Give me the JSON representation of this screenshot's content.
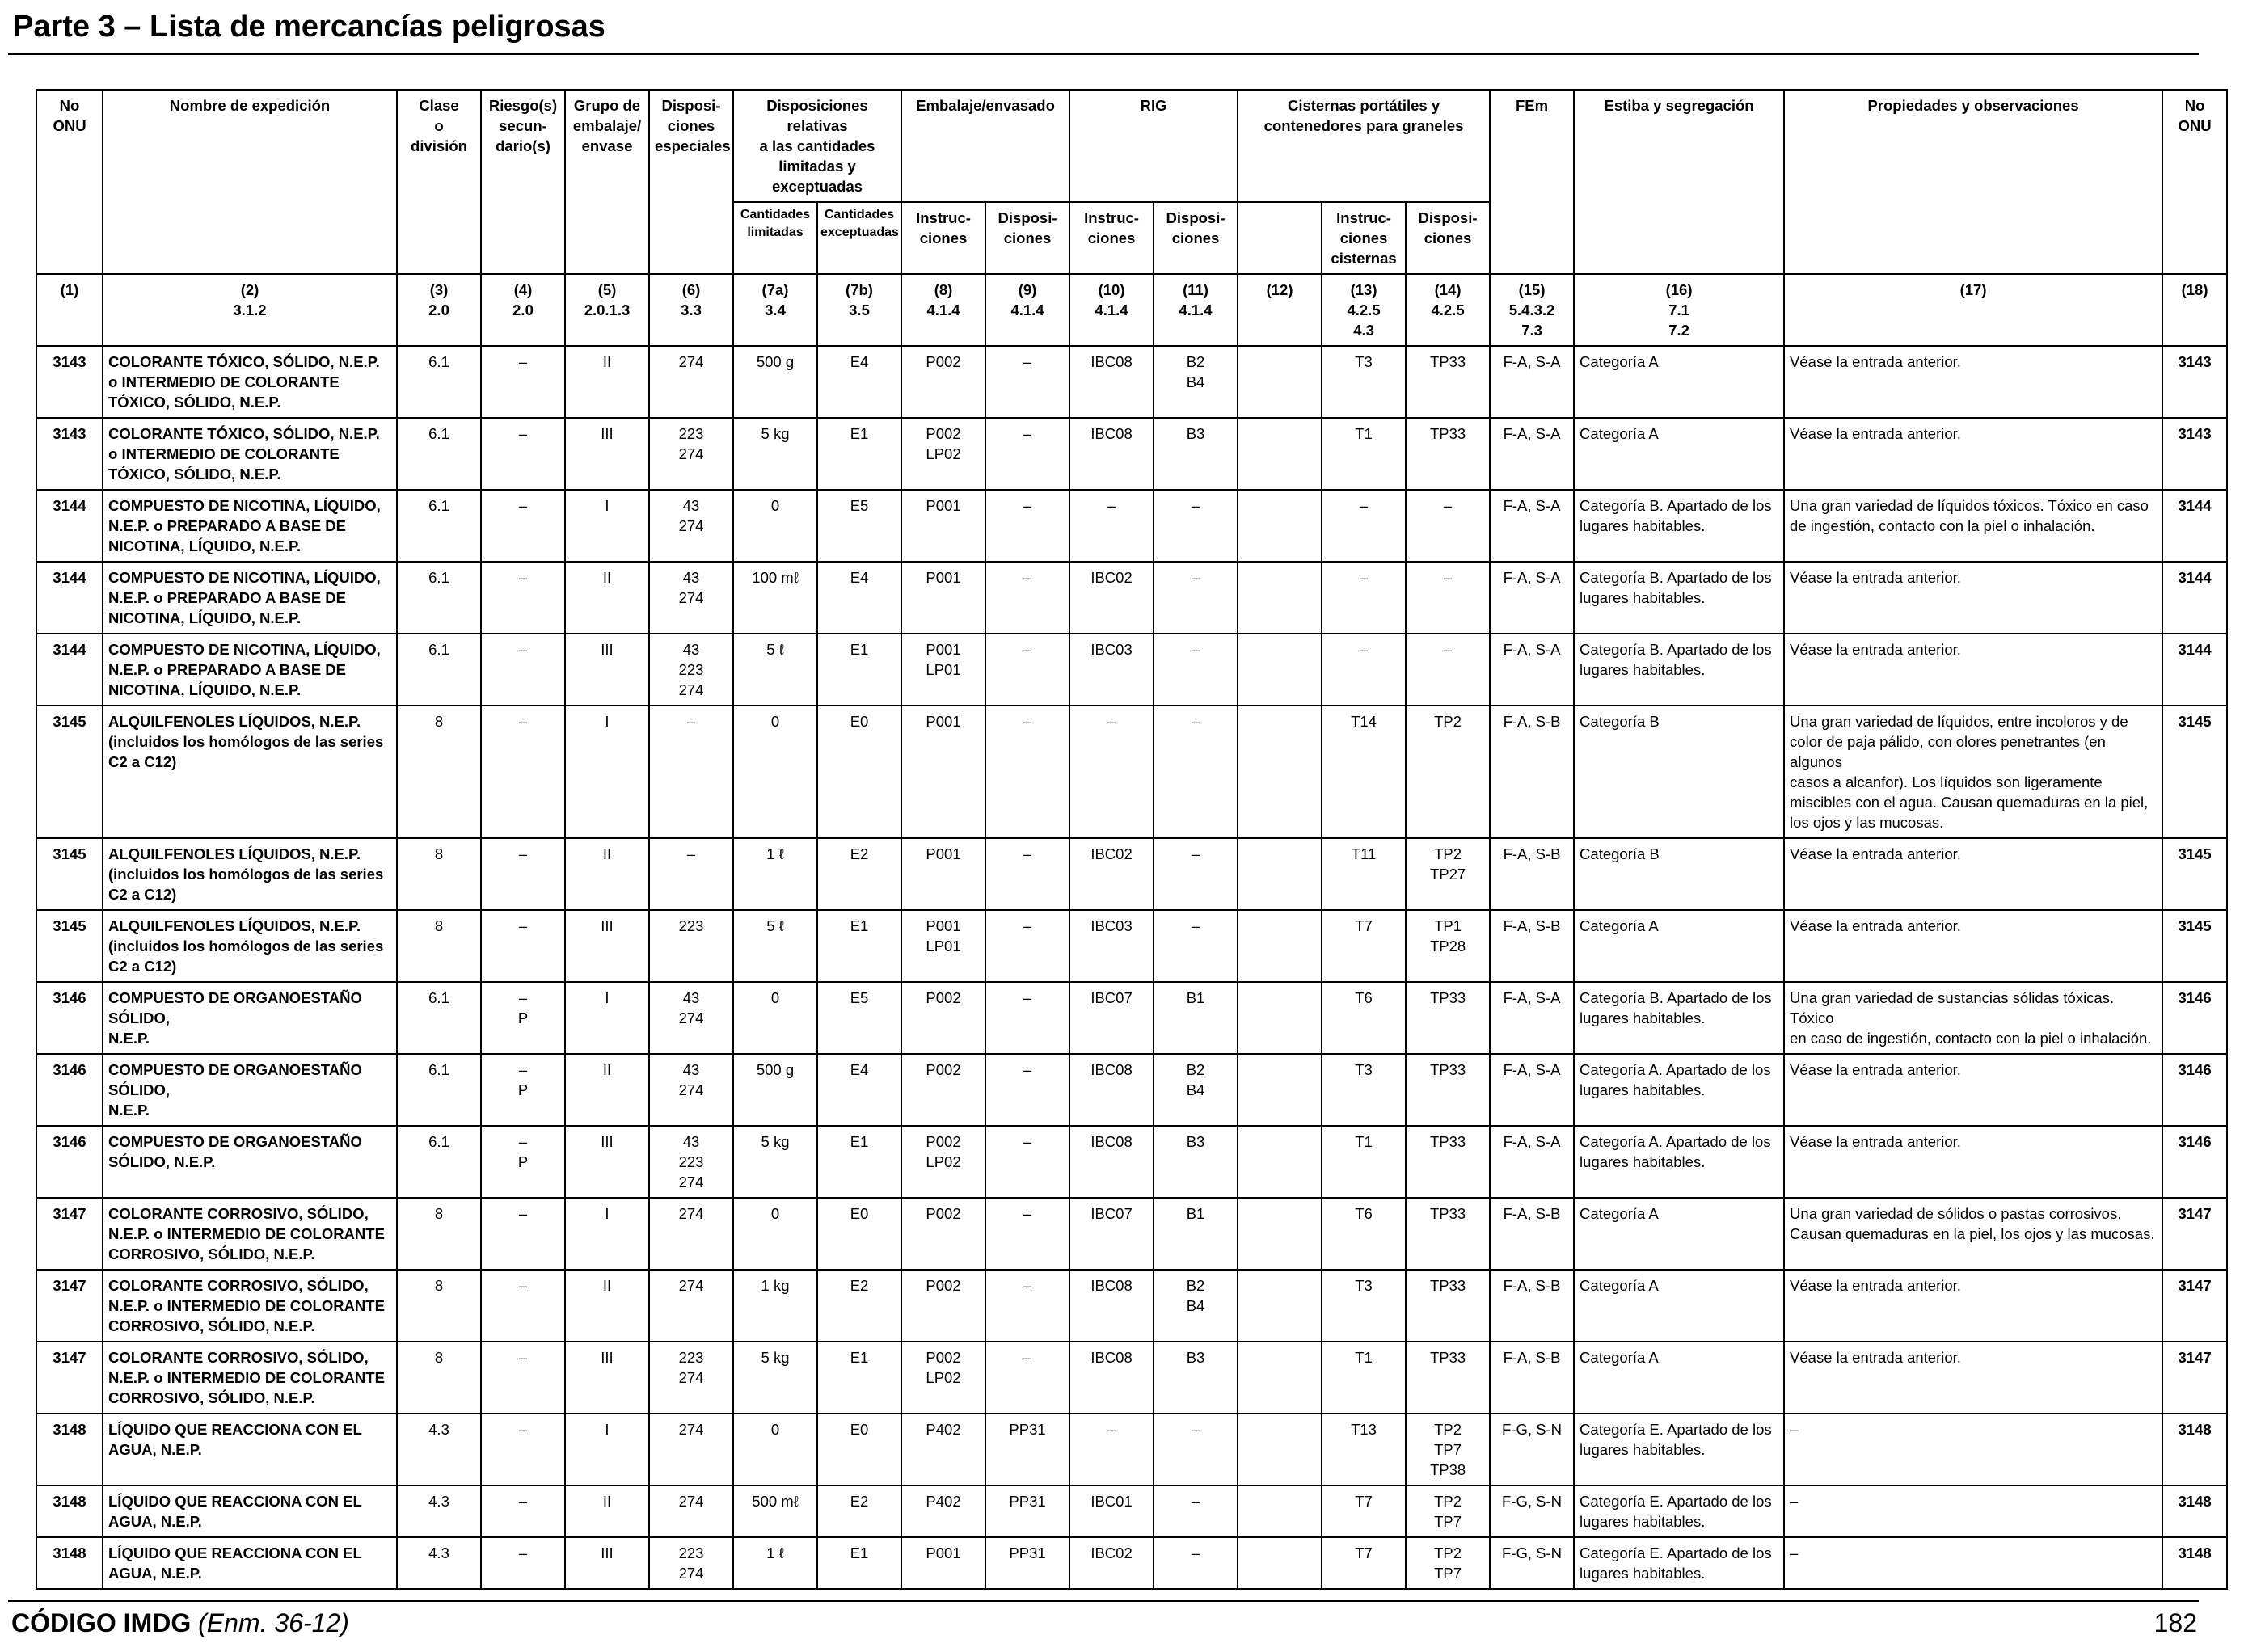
{
  "title": "Parte 3 – Lista de mercancías peligrosas",
  "headers": {
    "onu": "No\nONU",
    "nombre": "Nombre de expedición",
    "clase": "Clase\no\ndivisión",
    "riesgo": "Riesgo(s)\nsecun-\ndario(s)",
    "grupo": "Grupo de\nembalaje/\nenvase",
    "dispesp": "Disposi-\nciones\nespeciales",
    "dispcant": "Disposiciones relativas\na las cantidades\nlimitadas y exceptuadas",
    "embalaje": "Embalaje/envasado",
    "rig": "RIG",
    "cisternas": "Cisternas portátiles y\ncontenedores para graneles",
    "fem": "FEm",
    "estiba": "Estiba y segregación",
    "propiedades": "Propiedades y observaciones",
    "onu2": "No\nONU",
    "cantlim": "Cantidades\nlimitadas",
    "cantexc": "Cantidades\nexceptuadas",
    "emb_instr": "Instruc-\nciones",
    "emb_disp": "Disposi-\nciones",
    "rig_instr": "Instruc-\nciones",
    "rig_disp": "Disposi-\nciones",
    "cis_instr": "Instruc-\nciones\ncisternas",
    "cis_disp": "Disposi-\nciones"
  },
  "column_numbers": [
    "(1)",
    "(2)\n3.1.2",
    "(3)\n2.0",
    "(4)\n2.0",
    "(5)\n2.0.1.3",
    "(6)\n3.3",
    "(7a)\n3.4",
    "(7b)\n3.5",
    "(8)\n4.1.4",
    "(9)\n4.1.4",
    "(10)\n4.1.4",
    "(11)\n4.1.4",
    "(12)",
    "(13)\n4.2.5\n4.3",
    "(14)\n4.2.5",
    "(15)\n5.4.3.2\n7.3",
    "(16)\n7.1\n7.2",
    "(17)",
    "(18)"
  ],
  "rows": [
    [
      "3143",
      "COLORANTE TÓXICO, SÓLIDO, N.E.P.\no INTERMEDIO DE COLORANTE\nTÓXICO, SÓLIDO, N.E.P.",
      "6.1",
      "–",
      "II",
      "274",
      "500 g",
      "E4",
      "P002",
      "–",
      "IBC08",
      "B2\nB4",
      "",
      "T3",
      "TP33",
      "F-A, S-A",
      "Categoría A",
      "Véase la entrada anterior.",
      "3143"
    ],
    [
      "3143",
      "COLORANTE TÓXICO, SÓLIDO, N.E.P.\no INTERMEDIO DE COLORANTE\nTÓXICO, SÓLIDO, N.E.P.",
      "6.1",
      "–",
      "III",
      "223\n274",
      "5 kg",
      "E1",
      "P002\nLP02",
      "–",
      "IBC08",
      "B3",
      "",
      "T1",
      "TP33",
      "F-A, S-A",
      "Categoría A",
      "Véase la entrada anterior.",
      "3143"
    ],
    [
      "3144",
      "COMPUESTO DE NICOTINA, LÍQUIDO,\nN.E.P. o PREPARADO A BASE DE\nNICOTINA, LÍQUIDO, N.E.P.",
      "6.1",
      "–",
      "I",
      "43\n274",
      "0",
      "E5",
      "P001",
      "–",
      "–",
      "–",
      "",
      "–",
      "–",
      "F-A, S-A",
      "Categoría B. Apartado de los\nlugares habitables.",
      "Una gran variedad de líquidos tóxicos. Tóxico en caso\nde ingestión, contacto con la piel o inhalación.",
      "3144"
    ],
    [
      "3144",
      "COMPUESTO DE NICOTINA, LÍQUIDO,\nN.E.P. o PREPARADO A BASE DE\nNICOTINA, LÍQUIDO, N.E.P.",
      "6.1",
      "–",
      "II",
      "43\n274",
      "100 mℓ",
      "E4",
      "P001",
      "–",
      "IBC02",
      "–",
      "",
      "–",
      "–",
      "F-A, S-A",
      "Categoría B. Apartado de los\nlugares habitables.",
      "Véase la entrada anterior.",
      "3144"
    ],
    [
      "3144",
      "COMPUESTO DE NICOTINA, LÍQUIDO,\nN.E.P. o PREPARADO A BASE DE\nNICOTINA, LÍQUIDO, N.E.P.",
      "6.1",
      "–",
      "III",
      "43\n223\n274",
      "5 ℓ",
      "E1",
      "P001\nLP01",
      "–",
      "IBC03",
      "–",
      "",
      "–",
      "–",
      "F-A, S-A",
      "Categoría B. Apartado de los\nlugares habitables.",
      "Véase la entrada anterior.",
      "3144"
    ],
    [
      "3145",
      "ALQUILFENOLES LÍQUIDOS, N.E.P.\n(incluidos los homólogos de las series\nC2 a C12)",
      "8",
      "–",
      "I",
      "–",
      "0",
      "E0",
      "P001",
      "–",
      "–",
      "–",
      "",
      "T14",
      "TP2",
      "F-A, S-B",
      "Categoría B",
      "Una gran variedad de líquidos, entre incoloros y de\ncolor de paja pálido, con olores penetrantes (en algunos\ncasos a alcanfor). Los líquidos son ligeramente\nmiscibles con el agua. Causan quemaduras en la piel,\nlos ojos y las mucosas.",
      "3145"
    ],
    [
      "3145",
      "ALQUILFENOLES LÍQUIDOS, N.E.P.\n(incluidos los homólogos de las series\nC2 a C12)",
      "8",
      "–",
      "II",
      "–",
      "1 ℓ",
      "E2",
      "P001",
      "–",
      "IBC02",
      "–",
      "",
      "T11",
      "TP2\nTP27",
      "F-A, S-B",
      "Categoría B",
      "Véase la entrada anterior.",
      "3145"
    ],
    [
      "3145",
      "ALQUILFENOLES LÍQUIDOS, N.E.P.\n(incluidos los homólogos de las series\nC2 a C12)",
      "8",
      "–",
      "III",
      "223",
      "5 ℓ",
      "E1",
      "P001\nLP01",
      "–",
      "IBC03",
      "–",
      "",
      "T7",
      "TP1\nTP28",
      "F-A, S-B",
      "Categoría A",
      "Véase la entrada anterior.",
      "3145"
    ],
    [
      "3146",
      "COMPUESTO DE ORGANOESTAÑO\nSÓLIDO,\nN.E.P.",
      "6.1",
      "–\nP",
      "I",
      "43\n274",
      "0",
      "E5",
      "P002",
      "–",
      "IBC07",
      "B1",
      "",
      "T6",
      "TP33",
      "F-A, S-A",
      "Categoría B. Apartado de los\nlugares habitables.",
      "Una gran variedad de sustancias sólidas tóxicas. Tóxico\nen caso de ingestión, contacto con la piel o inhalación.",
      "3146"
    ],
    [
      "3146",
      "COMPUESTO DE ORGANOESTAÑO\nSÓLIDO,\nN.E.P.",
      "6.1",
      "–\nP",
      "II",
      "43\n274",
      "500 g",
      "E4",
      "P002",
      "–",
      "IBC08",
      "B2\nB4",
      "",
      "T3",
      "TP33",
      "F-A, S-A",
      "Categoría A. Apartado de los\nlugares habitables.",
      "Véase la entrada anterior.",
      "3146"
    ],
    [
      "3146",
      "COMPUESTO DE ORGANOESTAÑO\nSÓLIDO, N.E.P.",
      "6.1",
      "–\nP",
      "III",
      "43\n223\n274",
      "5 kg",
      "E1",
      "P002\nLP02",
      "–",
      "IBC08",
      "B3",
      "",
      "T1",
      "TP33",
      "F-A, S-A",
      "Categoría A. Apartado de los\nlugares habitables.",
      "Véase la entrada anterior.",
      "3146"
    ],
    [
      "3147",
      "COLORANTE CORROSIVO, SÓLIDO,\nN.E.P. o INTERMEDIO DE COLORANTE\nCORROSIVO, SÓLIDO, N.E.P.",
      "8",
      "–",
      "I",
      "274",
      "0",
      "E0",
      "P002",
      "–",
      "IBC07",
      "B1",
      "",
      "T6",
      "TP33",
      "F-A, S-B",
      "Categoría A",
      "Una gran variedad de sólidos o pastas corrosivos.\nCausan quemaduras en la piel, los ojos y las mucosas.",
      "3147"
    ],
    [
      "3147",
      "COLORANTE CORROSIVO, SÓLIDO,\nN.E.P. o INTERMEDIO DE COLORANTE\nCORROSIVO, SÓLIDO, N.E.P.",
      "8",
      "–",
      "II",
      "274",
      "1 kg",
      "E2",
      "P002",
      "–",
      "IBC08",
      "B2\nB4",
      "",
      "T3",
      "TP33",
      "F-A, S-B",
      "Categoría A",
      "Véase la entrada anterior.",
      "3147"
    ],
    [
      "3147",
      "COLORANTE CORROSIVO, SÓLIDO,\nN.E.P. o INTERMEDIO DE COLORANTE\nCORROSIVO, SÓLIDO, N.E.P.",
      "8",
      "–",
      "III",
      "223\n274",
      "5 kg",
      "E1",
      "P002\nLP02",
      "–",
      "IBC08",
      "B3",
      "",
      "T1",
      "TP33",
      "F-A, S-B",
      "Categoría A",
      "Véase la entrada anterior.",
      "3147"
    ],
    [
      "3148",
      "LÍQUIDO QUE REACCIONA CON EL\nAGUA, N.E.P.",
      "4.3",
      "–",
      "I",
      "274",
      "0",
      "E0",
      "P402",
      "PP31",
      "–",
      "–",
      "",
      "T13",
      "TP2\nTP7\nTP38",
      "F-G, S-N",
      "Categoría E. Apartado de los\nlugares habitables.",
      "–",
      "3148"
    ],
    [
      "3148",
      "LÍQUIDO QUE REACCIONA CON EL\nAGUA, N.E.P.",
      "4.3",
      "–",
      "II",
      "274",
      "500 mℓ",
      "E2",
      "P402",
      "PP31",
      "IBC01",
      "–",
      "",
      "T7",
      "TP2\nTP7",
      "F-G, S-N",
      "Categoría E. Apartado de los\nlugares habitables.",
      "–",
      "3148"
    ],
    [
      "3148",
      "LÍQUIDO QUE REACCIONA CON EL\nAGUA, N.E.P.",
      "4.3",
      "–",
      "III",
      "223\n274",
      "1 ℓ",
      "E1",
      "P001",
      "PP31",
      "IBC02",
      "–",
      "",
      "T7",
      "TP2\nTP7",
      "F-G, S-N",
      "Categoría E. Apartado de los\nlugares habitables.",
      "–",
      "3148"
    ]
  ],
  "footer": {
    "code": "CÓDIGO IMDG",
    "edition": "(Enm. 36-12)",
    "page": "182"
  }
}
